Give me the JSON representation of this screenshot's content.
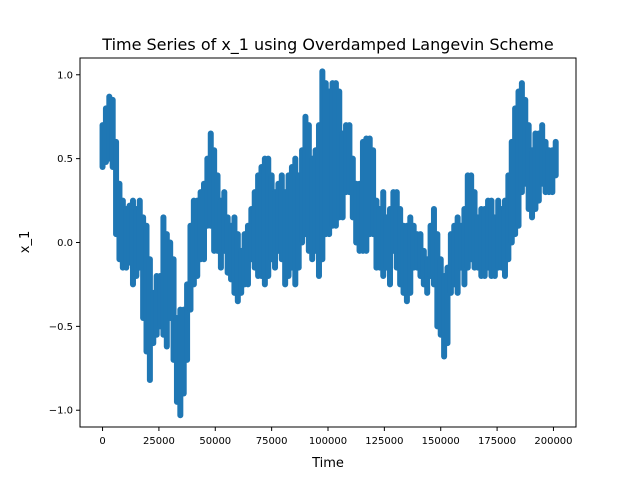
{
  "chart_data": {
    "type": "scatter",
    "title": "Time Series of x_1 using Overdamped Langevin Scheme",
    "xlabel": "Time",
    "ylabel": "x_1",
    "xlim": [
      -10000,
      210000
    ],
    "ylim": [
      -1.1,
      1.1
    ],
    "xticks": [
      0,
      25000,
      50000,
      75000,
      100000,
      125000,
      150000,
      175000,
      200000
    ],
    "xtick_labels": [
      "0",
      "25000",
      "50000",
      "75000",
      "100000",
      "125000",
      "150000",
      "175000",
      "200000"
    ],
    "yticks": [
      -1.0,
      -0.5,
      0.0,
      0.5,
      1.0
    ],
    "ytick_labels": [
      "−1.0",
      "−0.5",
      "0.0",
      "0.5",
      "1.0"
    ],
    "grid": false,
    "color": "#1f77b4",
    "series": [
      {
        "x": [
          0,
          1500,
          3000,
          4500,
          6000,
          7500,
          9000,
          10500,
          12000,
          13500,
          15000,
          16500,
          18000,
          19500,
          21000,
          22500,
          24000,
          25500,
          27000,
          28500,
          30000,
          31500,
          33000,
          34500,
          36000,
          37500,
          39000,
          40500,
          42000,
          43500,
          45000,
          46500,
          48000,
          49500,
          51000,
          52500,
          54000,
          55500,
          57000,
          58500,
          60000,
          61500,
          63000,
          64500,
          66000,
          67500,
          69000,
          70500,
          72000,
          73500,
          75000,
          76500,
          78000,
          79500,
          81000,
          82500,
          84000,
          85500,
          87000,
          88500,
          90000,
          91500,
          93000,
          94500,
          96000,
          97500,
          99000,
          100500,
          102000,
          103500,
          105000,
          106500,
          108000,
          109500,
          111000,
          112500,
          114000,
          115500,
          117000,
          118500,
          120000,
          121500,
          123000,
          124500,
          126000,
          127500,
          129000,
          130500,
          132000,
          133500,
          135000,
          136500,
          138000,
          139500,
          141000,
          142500,
          144000,
          145500,
          147000,
          148500,
          150000,
          151500,
          153000,
          154500,
          156000,
          157500,
          159000,
          160500,
          162000,
          163500,
          165000,
          166500,
          168000,
          169500,
          171000,
          172500,
          174000,
          175500,
          177000,
          178500,
          180000,
          181500,
          183000,
          184500,
          186000,
          187500,
          189000,
          190500,
          192000,
          193500,
          195000,
          196500,
          198000,
          199500,
          201000
        ],
        "y_min": [
          0.45,
          0.48,
          0.5,
          0.45,
          0.05,
          -0.1,
          -0.15,
          -0.15,
          -0.12,
          -0.25,
          -0.2,
          -0.15,
          -0.45,
          -0.65,
          -0.82,
          -0.6,
          -0.55,
          -0.5,
          -0.55,
          -0.62,
          -0.45,
          -0.7,
          -0.95,
          -1.03,
          -0.9,
          -0.7,
          -0.4,
          -0.25,
          -0.2,
          -0.1,
          -0.1,
          0.1,
          0.1,
          -0.05,
          -0.05,
          -0.15,
          -0.05,
          -0.18,
          -0.22,
          -0.3,
          -0.35,
          -0.3,
          -0.25,
          -0.25,
          -0.1,
          -0.15,
          -0.2,
          -0.2,
          -0.25,
          -0.2,
          -0.1,
          -0.15,
          -0.05,
          -0.1,
          -0.25,
          -0.2,
          -0.15,
          -0.25,
          -0.15,
          0.0,
          0.05,
          -0.05,
          -0.1,
          -0.05,
          -0.2,
          -0.1,
          0.05,
          0.05,
          0.1,
          0.1,
          0.15,
          0.15,
          0.3,
          0.3,
          0.15,
          0.0,
          -0.05,
          -0.05,
          -0.05,
          0.05,
          0.05,
          -0.15,
          -0.15,
          -0.2,
          -0.15,
          -0.25,
          -0.05,
          -0.15,
          -0.25,
          -0.3,
          -0.35,
          -0.3,
          -0.15,
          -0.15,
          -0.2,
          -0.25,
          -0.3,
          -0.2,
          -0.25,
          -0.5,
          -0.55,
          -0.68,
          -0.6,
          -0.3,
          -0.25,
          -0.3,
          -0.15,
          -0.25,
          -0.15,
          -0.1,
          -0.15,
          -0.15,
          -0.2,
          -0.2,
          -0.15,
          -0.2,
          -0.2,
          -0.15,
          -0.15,
          -0.2,
          -0.1,
          0.0,
          0.05,
          0.1,
          0.3,
          0.35,
          0.2,
          0.15,
          0.2,
          0.25,
          0.35,
          0.3,
          0.3,
          0.3,
          0.4
        ],
        "y_max": [
          0.7,
          0.8,
          0.87,
          0.85,
          0.6,
          0.35,
          0.25,
          0.2,
          0.22,
          0.25,
          0.2,
          0.25,
          0.15,
          0.1,
          -0.1,
          -0.3,
          -0.2,
          -0.2,
          0.15,
          0.05,
          0.0,
          -0.1,
          -0.45,
          -0.4,
          -0.4,
          -0.25,
          0.1,
          0.25,
          0.25,
          0.3,
          0.35,
          0.5,
          0.65,
          0.55,
          0.4,
          0.25,
          0.3,
          0.15,
          0.1,
          0.15,
          0.05,
          -0.05,
          0.05,
          0.1,
          0.2,
          0.3,
          0.4,
          0.45,
          0.5,
          0.5,
          0.4,
          0.3,
          0.35,
          0.4,
          0.3,
          0.4,
          0.45,
          0.5,
          0.4,
          0.55,
          0.75,
          0.7,
          0.5,
          0.55,
          0.7,
          1.02,
          0.95,
          0.9,
          0.95,
          0.95,
          0.9,
          0.65,
          0.7,
          0.7,
          0.5,
          0.35,
          0.35,
          0.6,
          0.62,
          0.62,
          0.55,
          0.25,
          0.2,
          0.3,
          0.15,
          0.2,
          0.3,
          0.3,
          0.2,
          0.1,
          0.1,
          0.15,
          0.1,
          0.05,
          0.05,
          -0.05,
          -0.1,
          0.1,
          0.2,
          0.05,
          -0.1,
          -0.2,
          -0.15,
          0.05,
          0.1,
          0.15,
          0.1,
          0.2,
          0.4,
          0.4,
          0.3,
          0.15,
          0.2,
          0.2,
          0.25,
          0.25,
          0.15,
          0.25,
          0.2,
          0.25,
          0.4,
          0.6,
          0.8,
          0.9,
          0.95,
          0.85,
          0.7,
          0.55,
          0.65,
          0.65,
          0.7,
          0.6,
          0.55,
          0.55,
          0.6
        ]
      }
    ]
  }
}
